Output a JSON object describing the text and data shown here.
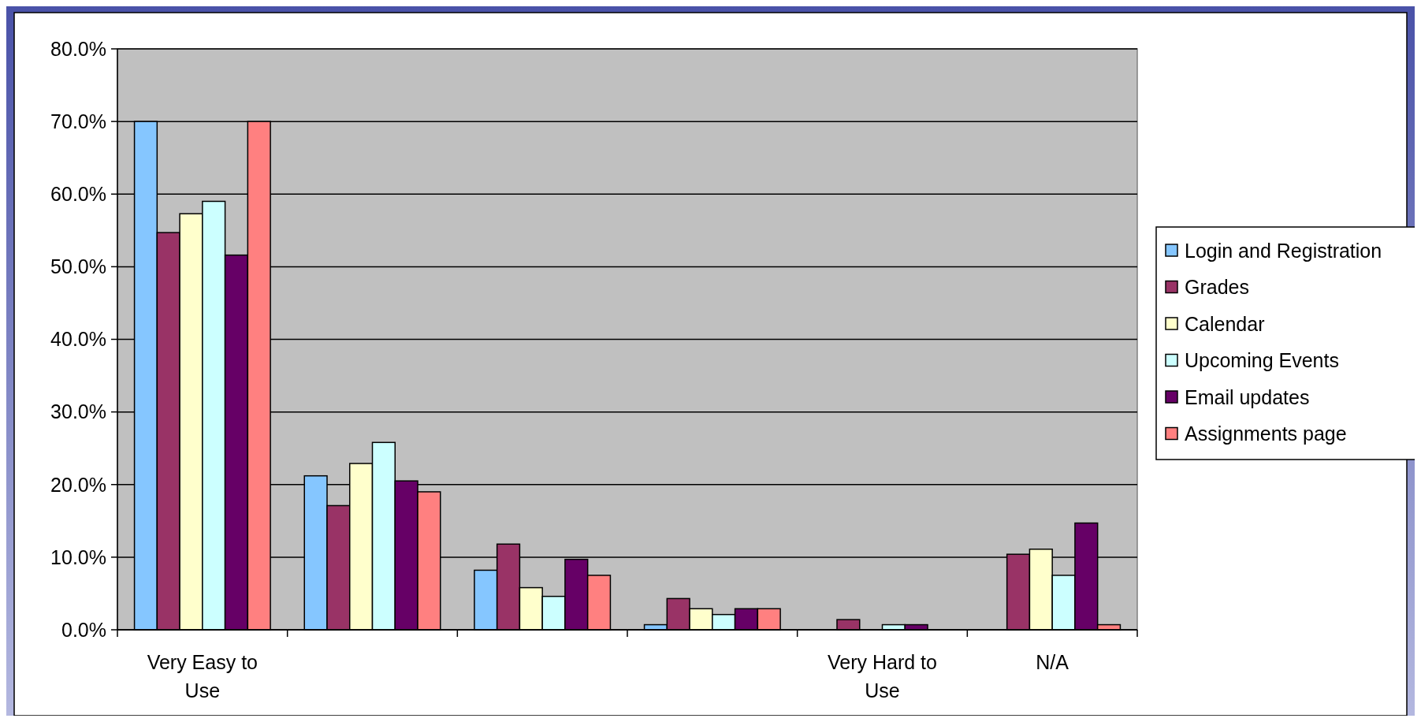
{
  "chart_data": {
    "type": "bar",
    "categories": [
      "Very Easy to Use",
      null,
      null,
      null,
      "Very Hard to Use",
      "N/A"
    ],
    "series": [
      {
        "name": "Login and Registration",
        "color": "#85c6ff",
        "values": [
          70.0,
          21.2,
          8.2,
          0.7,
          0,
          0
        ]
      },
      {
        "name": "Grades",
        "color": "#993366",
        "values": [
          54.7,
          17.1,
          11.8,
          4.3,
          1.4,
          10.4
        ]
      },
      {
        "name": "Calendar",
        "color": "#ffffcc",
        "values": [
          57.3,
          22.9,
          5.8,
          2.9,
          0,
          11.1
        ]
      },
      {
        "name": "Upcoming Events",
        "color": "#ccffff",
        "values": [
          59.0,
          25.8,
          4.6,
          2.1,
          0.7,
          7.5
        ]
      },
      {
        "name": "Email updates",
        "color": "#660066",
        "values": [
          51.6,
          20.5,
          9.7,
          2.9,
          0.7,
          14.7
        ]
      },
      {
        "name": "Assignments page",
        "color": "#ff8080",
        "values": [
          70.0,
          19.0,
          7.5,
          2.9,
          0,
          0.7
        ]
      }
    ],
    "ylim": [
      0,
      80
    ],
    "yticks": [
      {
        "value": 0,
        "label": "0.0%"
      },
      {
        "value": 10,
        "label": "10.0%"
      },
      {
        "value": 20,
        "label": "20.0%"
      },
      {
        "value": 30,
        "label": "30.0%"
      },
      {
        "value": 40,
        "label": "40.0%"
      },
      {
        "value": 50,
        "label": "50.0%"
      },
      {
        "value": 60,
        "label": "60.0%"
      },
      {
        "value": 70,
        "label": "70.0%"
      },
      {
        "value": 80,
        "label": "80.0%"
      }
    ],
    "grid": "y",
    "legend": "right"
  }
}
